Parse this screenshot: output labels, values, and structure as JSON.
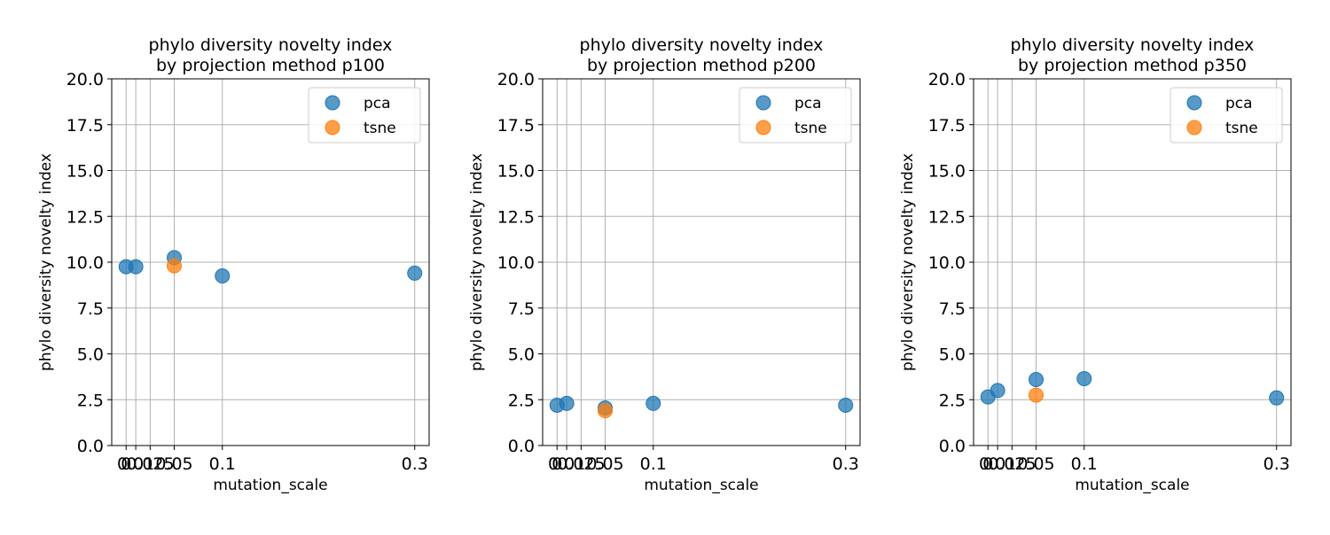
{
  "colors": {
    "pca": "#1f77b4",
    "tsne": "#ff7f0e",
    "grid": "#b0b0b0"
  },
  "chart_data": [
    {
      "type": "scatter",
      "title": "phylo diversity novelty index",
      "subtitle": "by projection method p100",
      "xlabel": "mutation_scale",
      "ylabel": "phylo diversity novelty index",
      "xlim": [
        -0.015,
        0.315
      ],
      "ylim": [
        0,
        20
      ],
      "x_ticks": [
        0,
        0.01,
        0.025,
        0.05,
        0.1,
        0.3
      ],
      "x_tick_labels": [
        "0",
        "0.01",
        "0.025",
        "0.05",
        "0.1",
        "0.3"
      ],
      "y_ticks": [
        0,
        2.5,
        5,
        7.5,
        10,
        12.5,
        15,
        17.5,
        20
      ],
      "y_tick_labels": [
        "0.0",
        "2.5",
        "5.0",
        "7.5",
        "10.0",
        "12.5",
        "15.0",
        "17.5",
        "20.0"
      ],
      "grid": true,
      "legend_position": "top-right",
      "series": [
        {
          "name": "pca",
          "x": [
            0,
            0.01,
            0.05,
            0.1,
            0.3
          ],
          "y": [
            9.75,
            9.75,
            10.25,
            9.25,
            9.4
          ]
        },
        {
          "name": "tsne",
          "x": [
            0.05
          ],
          "y": [
            9.8
          ]
        }
      ]
    },
    {
      "type": "scatter",
      "title": "phylo diversity novelty index",
      "subtitle": "by projection method p200",
      "xlabel": "mutation_scale",
      "ylabel": "phylo diversity novelty index",
      "xlim": [
        -0.015,
        0.315
      ],
      "ylim": [
        0,
        20
      ],
      "x_ticks": [
        0,
        0.01,
        0.025,
        0.05,
        0.1,
        0.3
      ],
      "x_tick_labels": [
        "0",
        "0.01",
        "0.025",
        "0.05",
        "0.1",
        "0.3"
      ],
      "y_ticks": [
        0,
        2.5,
        5,
        7.5,
        10,
        12.5,
        15,
        17.5,
        20
      ],
      "y_tick_labels": [
        "0.0",
        "2.5",
        "5.0",
        "7.5",
        "10.0",
        "12.5",
        "15.0",
        "17.5",
        "20.0"
      ],
      "grid": true,
      "legend_position": "top-right",
      "series": [
        {
          "name": "pca",
          "x": [
            0,
            0.01,
            0.05,
            0.1,
            0.3
          ],
          "y": [
            2.2,
            2.3,
            2.05,
            2.3,
            2.2
          ]
        },
        {
          "name": "tsne",
          "x": [
            0.05
          ],
          "y": [
            1.9
          ]
        }
      ]
    },
    {
      "type": "scatter",
      "title": "phylo diversity novelty index",
      "subtitle": "by projection method p350",
      "xlabel": "mutation_scale",
      "ylabel": "phylo diversity novelty index",
      "xlim": [
        -0.015,
        0.315
      ],
      "ylim": [
        0,
        20
      ],
      "x_ticks": [
        0,
        0.01,
        0.025,
        0.05,
        0.1,
        0.3
      ],
      "x_tick_labels": [
        "0",
        "0.01",
        "0.025",
        "0.05",
        "0.1",
        "0.3"
      ],
      "y_ticks": [
        0,
        2.5,
        5,
        7.5,
        10,
        12.5,
        15,
        17.5,
        20
      ],
      "y_tick_labels": [
        "0.0",
        "2.5",
        "5.0",
        "7.5",
        "10.0",
        "12.5",
        "15.0",
        "17.5",
        "20.0"
      ],
      "grid": true,
      "legend_position": "top-right",
      "series": [
        {
          "name": "pca",
          "x": [
            0,
            0.01,
            0.05,
            0.1,
            0.3
          ],
          "y": [
            2.65,
            3.0,
            3.6,
            3.65,
            2.6
          ]
        },
        {
          "name": "tsne",
          "x": [
            0.05
          ],
          "y": [
            2.75
          ]
        }
      ]
    }
  ]
}
